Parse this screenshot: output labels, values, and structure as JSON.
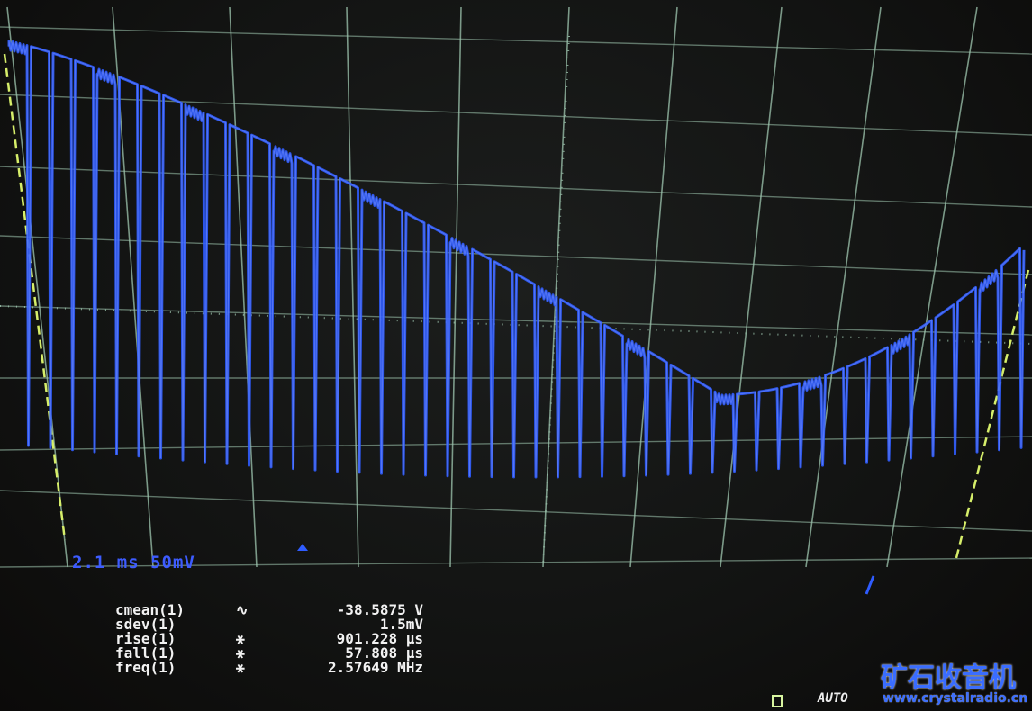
{
  "display": {
    "timebase": "2.1 ms",
    "volts_per_div": "50mV",
    "trace_color": "#2f5cff",
    "grid_color": "#9fc7b0",
    "trigger_mode": "AUTO"
  },
  "measurements": [
    {
      "label": "cmean(1)",
      "symbol": "∿",
      "value": "-38.5875 V"
    },
    {
      "label": "sdev(1)",
      "symbol": "",
      "value": "1.5mV"
    },
    {
      "label": "rise(1)",
      "symbol": "⚹",
      "value": "901.228 µs"
    },
    {
      "label": "fall(1)",
      "symbol": "⚹",
      "value": "57.808 µs"
    },
    {
      "label": "freq(1)",
      "symbol": "⚹",
      "value": "2.57649 MHz"
    }
  ],
  "watermark": {
    "title": "矿石收音机",
    "url": "www.crystalradio.cn"
  }
}
